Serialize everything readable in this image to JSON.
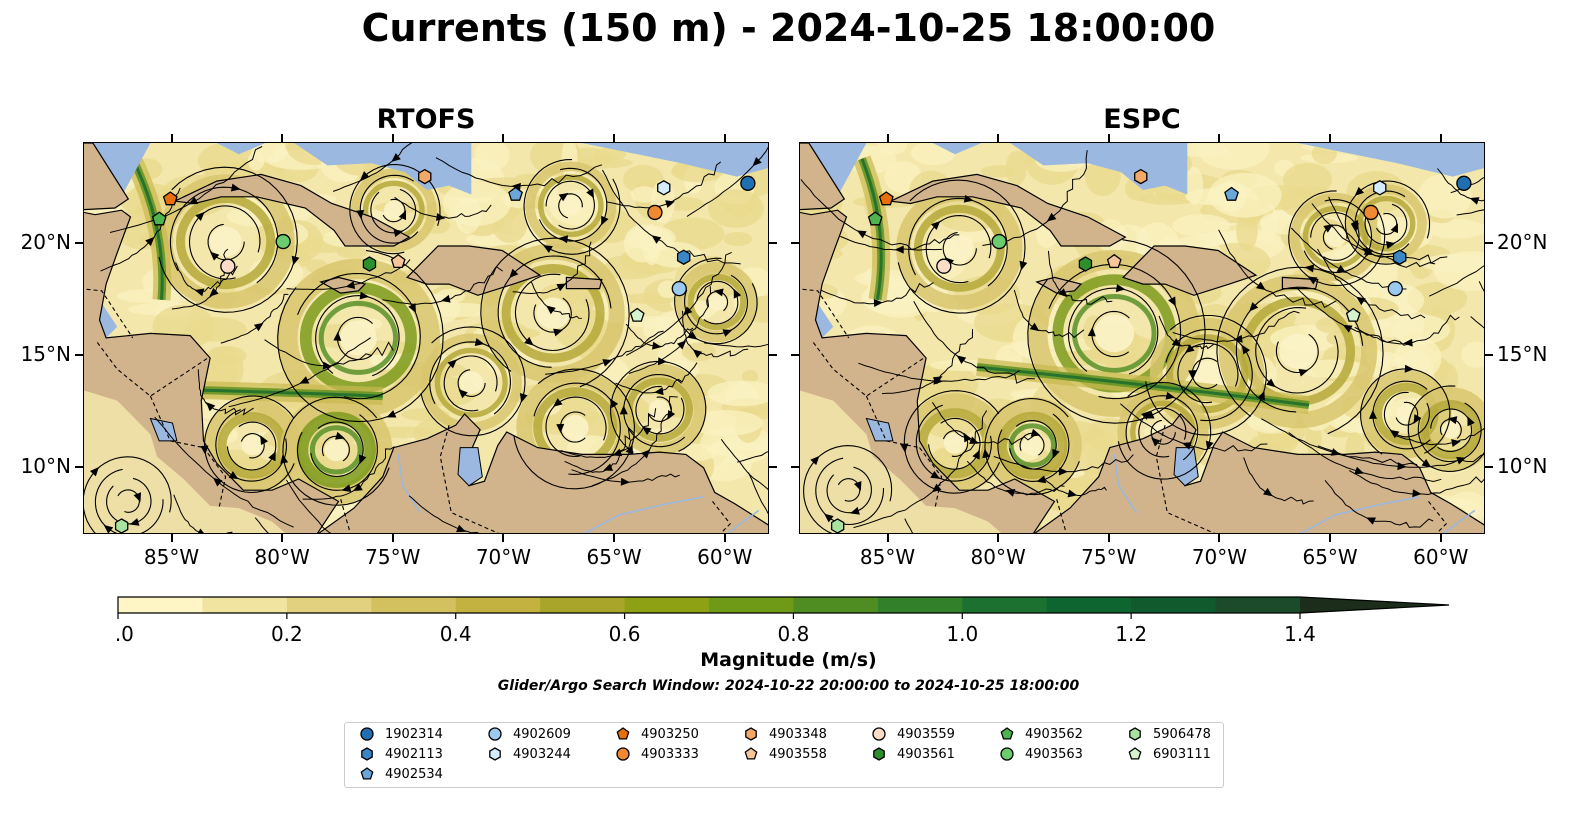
{
  "title": "Currents (150 m) - 2024-10-25 18:00:00",
  "panels": [
    {
      "title": "RTOFS"
    },
    {
      "title": "ESPC"
    }
  ],
  "axes": {
    "x_ticks": [
      "85°W",
      "80°W",
      "75°W",
      "70°W",
      "65°W",
      "60°W"
    ],
    "y_ticks": [
      "20°N",
      "15°N",
      "10°N"
    ],
    "lon_range": [
      -89,
      -58
    ],
    "lat_range": [
      7,
      24.5
    ]
  },
  "colorbar": {
    "label": "Magnitude (m/s)",
    "ticks": [
      "0.0",
      "0.2",
      "0.4",
      "0.6",
      "0.8",
      "1.0",
      "1.2",
      "1.4"
    ],
    "range": [
      0,
      1.5
    ],
    "extend": "max",
    "colors": [
      "#fef6c5",
      "#f1e4a0",
      "#e2d27f",
      "#d3c05e",
      "#c3b140",
      "#a9a52a",
      "#8ea014",
      "#6f9a17",
      "#4f8c22",
      "#33802a",
      "#1c7130",
      "#0f6530",
      "#115a2e",
      "#1b4b2a",
      "#1b3f24",
      "#1c2e1b"
    ]
  },
  "search_window": "Glider/Argo Search Window: 2024-10-22 20:00:00 to 2024-10-25 18:00:00",
  "colors": {
    "land": "#d2b48c",
    "water": "#9ab8e0"
  },
  "floats": [
    {
      "id": "1902314",
      "marker": "circle",
      "color": "#1f6fb2",
      "rtofs": [
        -59.0,
        22.7
      ],
      "espc": [
        -59.0,
        22.7
      ]
    },
    {
      "id": "4902113",
      "marker": "hexagon",
      "color": "#3b86c4",
      "rtofs": [
        -61.9,
        19.4
      ],
      "espc": [
        -61.9,
        19.4
      ]
    },
    {
      "id": "4902534",
      "marker": "pentagon",
      "color": "#6aa7d9",
      "rtofs": [
        -69.5,
        22.2
      ],
      "espc": [
        -69.5,
        22.2
      ]
    },
    {
      "id": "4902609",
      "marker": "circle",
      "color": "#9ccaef",
      "rtofs": [
        -62.1,
        18.0
      ],
      "espc": [
        -62.1,
        18.0
      ]
    },
    {
      "id": "4903244",
      "marker": "hexagon",
      "color": "#d4ecfb",
      "rtofs": [
        -62.8,
        22.5
      ],
      "espc": [
        -62.8,
        22.5
      ]
    },
    {
      "id": "4903250",
      "marker": "pentagon",
      "color": "#e8700c",
      "rtofs": [
        -85.1,
        22.0
      ],
      "espc": [
        -85.1,
        22.0
      ]
    },
    {
      "id": "4903333",
      "marker": "circle",
      "color": "#f08a32",
      "rtofs": [
        -63.2,
        21.4
      ],
      "espc": [
        -63.2,
        21.4
      ]
    },
    {
      "id": "4903348",
      "marker": "hexagon",
      "color": "#f4a868",
      "rtofs": [
        -73.6,
        23.0
      ],
      "espc": [
        -73.6,
        23.0
      ]
    },
    {
      "id": "4903558",
      "marker": "pentagon",
      "color": "#f7c79b",
      "rtofs": [
        -74.8,
        19.2
      ],
      "espc": [
        -74.8,
        19.2
      ]
    },
    {
      "id": "4903559",
      "marker": "circle",
      "color": "#fbdcc6",
      "rtofs": [
        -82.5,
        19.0
      ],
      "espc": [
        -82.5,
        19.0
      ]
    },
    {
      "id": "4903561",
      "marker": "hexagon",
      "color": "#2c8f2c",
      "rtofs": [
        -76.1,
        19.1
      ],
      "espc": [
        -76.1,
        19.1
      ]
    },
    {
      "id": "4903562",
      "marker": "pentagon",
      "color": "#4fb44f",
      "rtofs": [
        -85.6,
        21.1
      ],
      "espc": [
        -85.6,
        21.1
      ]
    },
    {
      "id": "4903563",
      "marker": "circle",
      "color": "#6ccb6c",
      "rtofs": [
        -80.0,
        20.1
      ],
      "espc": [
        -80.0,
        20.1
      ]
    },
    {
      "id": "5906478",
      "marker": "hexagon",
      "color": "#a8e3a1",
      "rtofs": [
        -87.3,
        7.4
      ],
      "espc": [
        -87.3,
        7.4
      ]
    },
    {
      "id": "6903111",
      "marker": "pentagon",
      "color": "#d5f3cf",
      "rtofs": [
        -64.0,
        16.8
      ],
      "espc": [
        -64.0,
        16.8
      ]
    }
  ],
  "legend_layout": [
    [
      "1902314",
      "4902113",
      "4902534"
    ],
    [
      "4902609",
      "4903244"
    ],
    [
      "4903250",
      "4903333"
    ],
    [
      "4903348",
      "4903558"
    ],
    [
      "4903559",
      "4903561"
    ],
    [
      "4903562",
      "4903563"
    ],
    [
      "5906478",
      "6903111"
    ]
  ]
}
